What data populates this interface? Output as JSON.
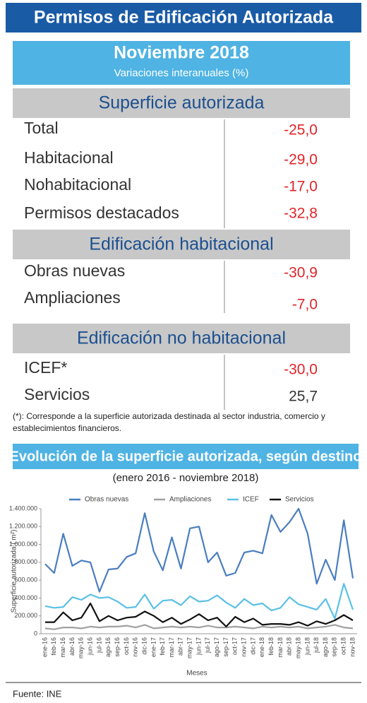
{
  "header": {
    "title": "Permisos de Edificación Autorizada",
    "period": "Noviembre 2018",
    "subtitle": "Variaciones interanuales (%)"
  },
  "sections": [
    {
      "title": "Superficie autorizada",
      "rows": [
        {
          "label": "Total",
          "value": "-25,0"
        },
        {
          "label": "Habitacional",
          "value": "-29,0"
        },
        {
          "label": "Nohabitacional",
          "value": "-17,0"
        },
        {
          "label": "Permisos destacados",
          "value": "-32,8"
        }
      ]
    },
    {
      "title": "Edificación habitacional",
      "rows": [
        {
          "label": "Obras nuevas",
          "value": "-30,9"
        },
        {
          "label": "Ampliaciones",
          "value": "-7,0"
        }
      ]
    },
    {
      "title": "Edificación no habitacional",
      "rows": [
        {
          "label": "ICEF*",
          "value": "-30,0"
        },
        {
          "label": "Servicios",
          "value": "25,7"
        }
      ]
    }
  ],
  "footnote": [
    "(*): Corresponde a la superficie autorizada destinada al sector industria, comercio y",
    "establecimientos financieros."
  ],
  "chart_title": "Evolución de la superficie autorizada, según destino",
  "chart_subtitle": "(enero 2016 - noviembre 2018)",
  "chart_data": {
    "type": "line",
    "x_label": "Meses",
    "y_label": "Superficie autorizada ( m²)",
    "categories": [
      "ene-16",
      "feb-16",
      "mar-16",
      "abr-16",
      "may-16",
      "jun-16",
      "jul-16",
      "ago-16",
      "sep-16",
      "oct-16",
      "nov-16",
      "dic-16",
      "ene-17",
      "feb-17",
      "mar-17",
      "abr-17",
      "may-17",
      "jun-17",
      "jul-17",
      "ago-17",
      "sep-17",
      "oct-17",
      "nov-17",
      "dic-17",
      "ene-18",
      "feb-18",
      "mar-18",
      "abr-18",
      "may-18",
      "jun-18",
      "jul-18",
      "ago-18",
      "sep-18",
      "oct-18",
      "nov-18"
    ],
    "ylim": [
      0,
      1400000
    ],
    "yticks": [
      0,
      {
        "value": 200000,
        "label": "200.000"
      },
      {
        "value": 400000,
        "label": "400.000"
      },
      {
        "value": 600000,
        "label": "600.000"
      },
      {
        "value": 800000,
        "label": "800.000"
      },
      {
        "value": 1000000,
        "label": "1.000.000"
      },
      {
        "value": 1200000,
        "label": "1.200.000"
      },
      {
        "value": 1400000,
        "label": "1.400.000"
      }
    ],
    "legend": "top",
    "series": [
      {
        "name": "Obras nuevas",
        "color": "#4a7ec0",
        "values": [
          780000,
          680000,
          1120000,
          760000,
          820000,
          800000,
          470000,
          720000,
          730000,
          860000,
          900000,
          1350000,
          920000,
          710000,
          1080000,
          730000,
          1180000,
          1200000,
          800000,
          910000,
          650000,
          680000,
          910000,
          930000,
          900000,
          1330000,
          1140000,
          1250000,
          1400000,
          1120000,
          560000,
          830000,
          600000,
          1270000,
          620000
        ]
      },
      {
        "name": "Ampliaciones",
        "color": "#a0a0a0",
        "values": [
          60000,
          50000,
          70000,
          70000,
          60000,
          80000,
          70000,
          80000,
          80000,
          90000,
          70000,
          100000,
          60000,
          70000,
          80000,
          70000,
          80000,
          70000,
          90000,
          70000,
          70000,
          80000,
          70000,
          60000,
          80000,
          70000,
          80000,
          70000,
          80000,
          60000,
          70000,
          80000,
          100000,
          70000,
          60000
        ]
      },
      {
        "name": "ICEF",
        "color": "#5bc0e6",
        "values": [
          310000,
          290000,
          300000,
          410000,
          380000,
          440000,
          400000,
          410000,
          360000,
          290000,
          300000,
          440000,
          280000,
          370000,
          380000,
          320000,
          420000,
          360000,
          370000,
          430000,
          350000,
          290000,
          390000,
          320000,
          340000,
          260000,
          290000,
          410000,
          330000,
          300000,
          270000,
          390000,
          170000,
          560000,
          270000
        ]
      },
      {
        "name": "Servicios",
        "color": "#111111",
        "values": [
          130000,
          130000,
          240000,
          150000,
          180000,
          340000,
          140000,
          200000,
          150000,
          180000,
          190000,
          250000,
          200000,
          130000,
          180000,
          110000,
          160000,
          220000,
          150000,
          180000,
          80000,
          190000,
          130000,
          170000,
          100000,
          110000,
          110000,
          100000,
          130000,
          90000,
          140000,
          110000,
          150000,
          210000,
          150000
        ]
      }
    ]
  },
  "source": "Fuente: INE"
}
